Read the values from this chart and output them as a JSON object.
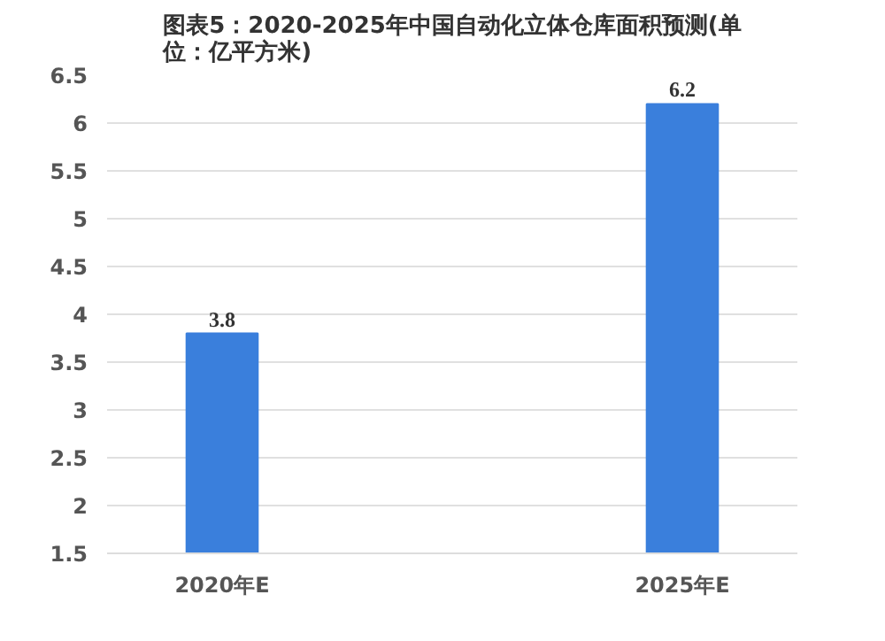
{
  "chart_data": {
    "type": "bar",
    "title": "图表5：2020-2025年中国自动化立体仓库面积预测(单位：亿平方米)",
    "categories": [
      "2020年E",
      "2025年E"
    ],
    "values": [
      3.8,
      6.2
    ],
    "color": "#3a7fdc",
    "ylim": [
      1.5,
      6.5
    ],
    "yticks": [
      1.5,
      2,
      2.5,
      3,
      3.5,
      4,
      4.5,
      5,
      5.5,
      6,
      6.5
    ],
    "grid": "y",
    "data_labels": true
  }
}
